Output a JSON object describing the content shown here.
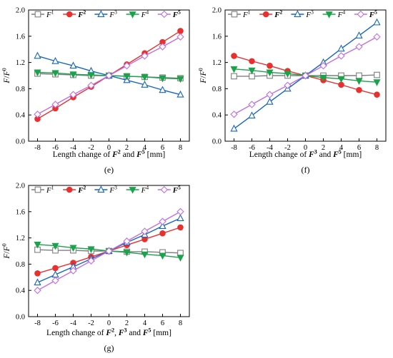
{
  "figure": {
    "legend_entries": [
      {
        "base": "F",
        "sup": "1",
        "style": "italic",
        "marker": "square",
        "color": "#7f7f7f"
      },
      {
        "base": "F",
        "sup": "2",
        "style": "bold-italic",
        "marker": "circle",
        "color": "#e8312f"
      },
      {
        "base": "F",
        "sup": "3",
        "style": "italic",
        "marker": "triangle-up",
        "color": "#1565c0"
      },
      {
        "base": "F",
        "sup": "4",
        "style": "italic",
        "marker": "triangle-down",
        "color": "#1aa34a"
      },
      {
        "base": "F",
        "sup": "5",
        "style": "bold-italic",
        "marker": "diamond",
        "color": "#c36ee0"
      }
    ],
    "ylabel": {
      "base": "F",
      "sep": "/",
      "base2": "F",
      "sup": "0"
    },
    "xticks": [
      "-8",
      "-6",
      "-4",
      "-2",
      "0",
      "2",
      "4",
      "6",
      "8"
    ],
    "yticks": [
      "0.0",
      "0.4",
      "0.8",
      "1.2",
      "1.6",
      "2.0"
    ]
  },
  "chart_data": [
    {
      "panel": "(e)",
      "type": "line",
      "xlabel_parts": [
        "Length change of ",
        "F",
        "2",
        " and ",
        "F",
        "5",
        " [mm]"
      ],
      "x": [
        -8,
        -6,
        -4,
        -2,
        0,
        2,
        4,
        6,
        8
      ],
      "xlim": [
        -9,
        9
      ],
      "ylim": [
        0,
        2.0
      ],
      "series": [
        {
          "name": "F1",
          "values": [
            1.03,
            1.02,
            1.01,
            1.0,
            1.0,
            0.99,
            0.98,
            0.97,
            0.96
          ]
        },
        {
          "name": "F2",
          "values": [
            0.34,
            0.5,
            0.67,
            0.83,
            1.0,
            1.17,
            1.34,
            1.51,
            1.68
          ]
        },
        {
          "name": "F3",
          "values": [
            1.3,
            1.22,
            1.15,
            1.07,
            1.0,
            0.93,
            0.86,
            0.78,
            0.71
          ]
        },
        {
          "name": "F4",
          "values": [
            1.05,
            1.04,
            1.02,
            1.01,
            1.0,
            0.99,
            0.98,
            0.96,
            0.95
          ]
        },
        {
          "name": "F5",
          "values": [
            0.41,
            0.56,
            0.71,
            0.85,
            1.0,
            1.15,
            1.3,
            1.44,
            1.59
          ]
        }
      ]
    },
    {
      "panel": "(f)",
      "type": "line",
      "xlabel_parts": [
        "Length change of ",
        "F",
        "3",
        " and ",
        "F",
        "5",
        " [mm]"
      ],
      "x": [
        -8,
        -6,
        -4,
        -2,
        0,
        2,
        4,
        6,
        8
      ],
      "xlim": [
        -9,
        9
      ],
      "ylim": [
        0,
        2.0
      ],
      "series": [
        {
          "name": "F1",
          "values": [
            0.99,
            0.99,
            1.0,
            1.0,
            1.0,
            1.0,
            1.0,
            1.0,
            1.01
          ]
        },
        {
          "name": "F2",
          "values": [
            1.3,
            1.22,
            1.15,
            1.07,
            1.0,
            0.93,
            0.86,
            0.78,
            0.71
          ]
        },
        {
          "name": "F3",
          "values": [
            0.19,
            0.39,
            0.6,
            0.8,
            1.0,
            1.2,
            1.41,
            1.61,
            1.81
          ]
        },
        {
          "name": "F4",
          "values": [
            1.1,
            1.08,
            1.05,
            1.03,
            1.0,
            0.97,
            0.95,
            0.92,
            0.9
          ]
        },
        {
          "name": "F5",
          "values": [
            0.41,
            0.56,
            0.71,
            0.85,
            1.0,
            1.15,
            1.3,
            1.44,
            1.59
          ]
        }
      ]
    },
    {
      "panel": "(g)",
      "type": "line",
      "xlabel_parts": [
        "Length change of ",
        "F",
        "2",
        ", ",
        "F",
        "3",
        " and ",
        "F",
        "5",
        " [mm]"
      ],
      "x": [
        -8,
        -6,
        -4,
        -2,
        0,
        2,
        4,
        6,
        8
      ],
      "xlim": [
        -9,
        9
      ],
      "ylim": [
        0,
        2.0
      ],
      "series": [
        {
          "name": "F1",
          "values": [
            1.02,
            1.01,
            1.01,
            1.0,
            1.0,
            0.99,
            0.99,
            0.98,
            0.97
          ]
        },
        {
          "name": "F2",
          "values": [
            0.66,
            0.74,
            0.82,
            0.91,
            1.0,
            1.09,
            1.18,
            1.27,
            1.36
          ]
        },
        {
          "name": "F3",
          "values": [
            0.52,
            0.64,
            0.76,
            0.88,
            1.0,
            1.13,
            1.25,
            1.38,
            1.5
          ]
        },
        {
          "name": "F4",
          "values": [
            1.1,
            1.08,
            1.05,
            1.03,
            1.0,
            0.98,
            0.95,
            0.93,
            0.9
          ]
        },
        {
          "name": "F5",
          "values": [
            0.4,
            0.55,
            0.7,
            0.85,
            1.0,
            1.15,
            1.3,
            1.45,
            1.6
          ]
        }
      ]
    }
  ]
}
